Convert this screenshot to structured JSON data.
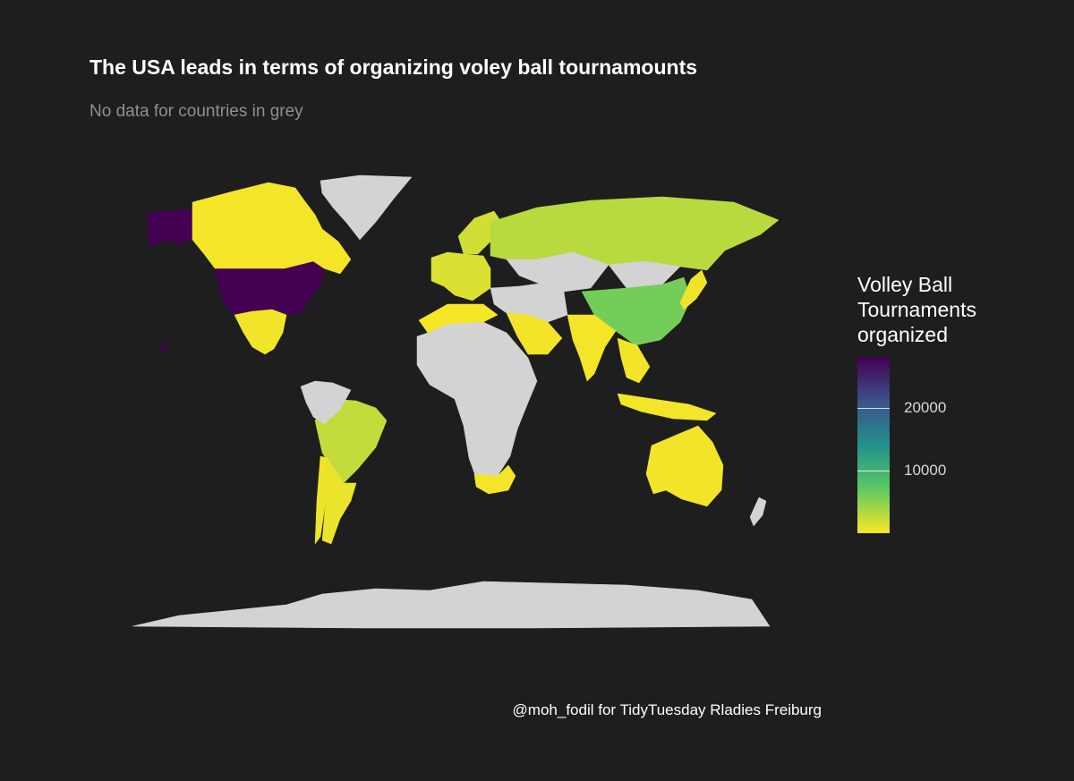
{
  "title": "The USA leads in terms of organizing voley ball tournamounts",
  "subtitle": "No data for countries in grey",
  "caption": "@moh_fodil for TidyTuesday Rladies Freiburg",
  "colors": {
    "background": "#1e1e1e",
    "no_data": "#d3d3d3",
    "scale": [
      "#fde725",
      "#5ec962",
      "#21918c",
      "#3b528b",
      "#440154"
    ]
  },
  "chart_data": {
    "type": "choropleth",
    "legend": {
      "title_lines": [
        "Volley Ball",
        "Tournaments",
        "organized"
      ],
      "ticks": [
        10000,
        20000
      ],
      "range": [
        0,
        28000
      ],
      "placement": "right"
    },
    "regions": [
      {
        "name": "United States",
        "value": 28000
      },
      {
        "name": "Alaska",
        "value": 28000
      },
      {
        "name": "Hawaii",
        "value": 28000
      },
      {
        "name": "Canada",
        "value": 400
      },
      {
        "name": "Mexico",
        "value": 500
      },
      {
        "name": "Brazil",
        "value": 2500
      },
      {
        "name": "Argentina",
        "value": 800
      },
      {
        "name": "Chile",
        "value": 600
      },
      {
        "name": "Greenland",
        "value": null
      },
      {
        "name": "Northern South America",
        "value": null
      },
      {
        "name": "Western Europe",
        "value": 1500
      },
      {
        "name": "Scandinavia",
        "value": 2000
      },
      {
        "name": "Russia",
        "value": 3000
      },
      {
        "name": "Kazakhstan & Central Asia",
        "value": null
      },
      {
        "name": "Mongolia",
        "value": null
      },
      {
        "name": "China",
        "value": 6000
      },
      {
        "name": "Japan",
        "value": 600
      },
      {
        "name": "India",
        "value": 400
      },
      {
        "name": "Middle East",
        "value": null
      },
      {
        "name": "Arabia",
        "value": 500
      },
      {
        "name": "Africa",
        "value": null
      },
      {
        "name": "North Africa Coast",
        "value": 300
      },
      {
        "name": "South Africa",
        "value": 400
      },
      {
        "name": "Southeast Asia",
        "value": 500
      },
      {
        "name": "Indonesia",
        "value": 400
      },
      {
        "name": "Australia",
        "value": 500
      },
      {
        "name": "New Zealand",
        "value": null
      },
      {
        "name": "Antarctica",
        "value": null
      }
    ]
  }
}
